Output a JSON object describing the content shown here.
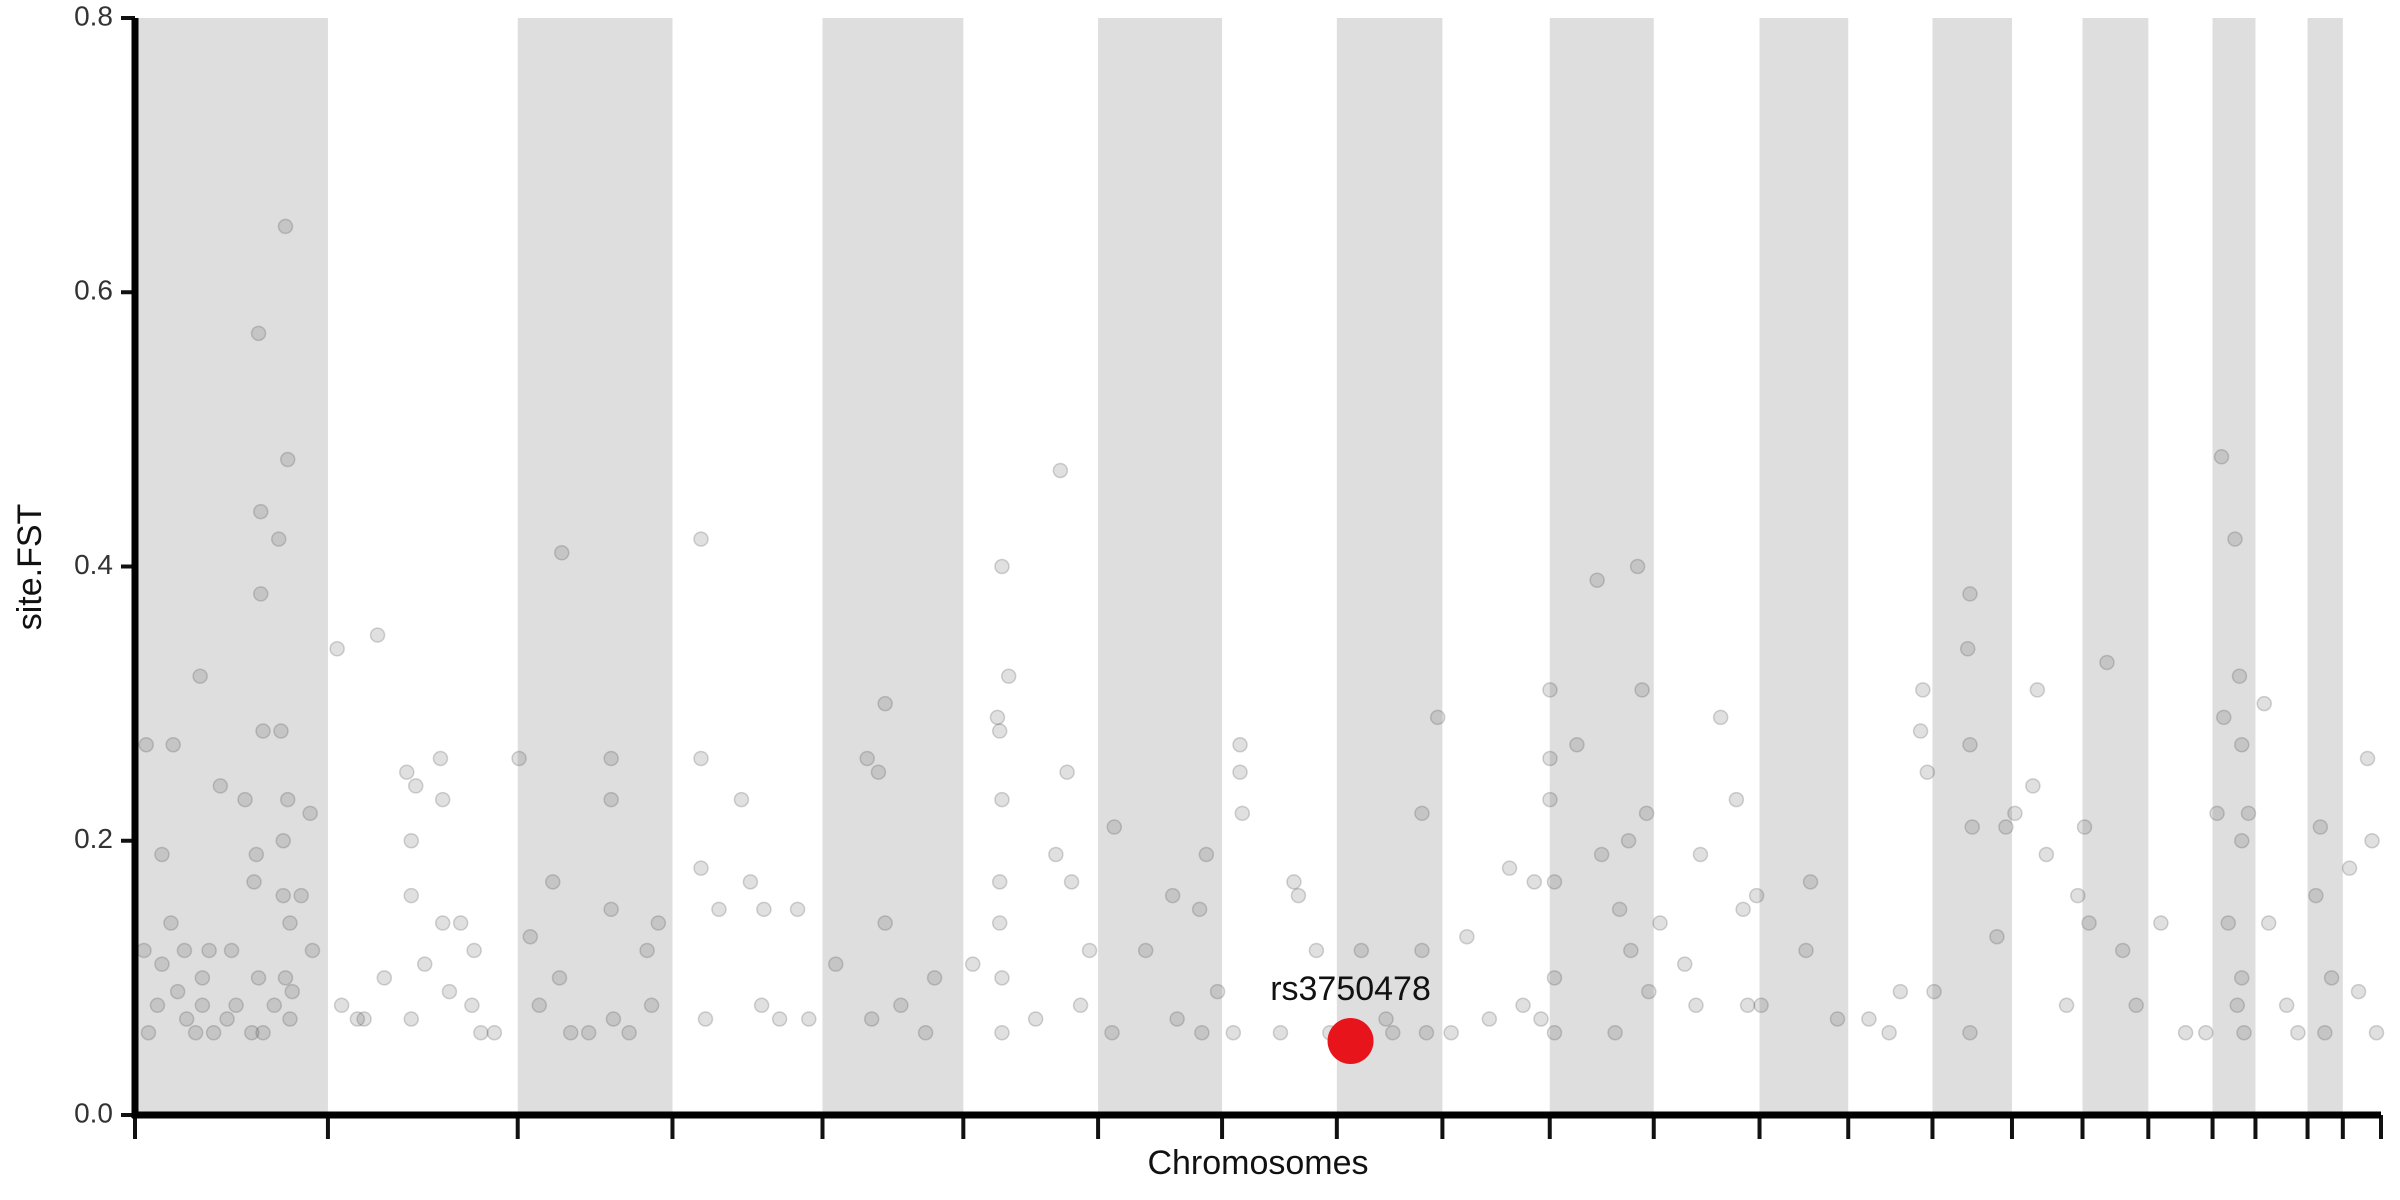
{
  "chart_data": {
    "type": "scatter",
    "xlabel": "Chromosomes",
    "ylabel": "site.FST",
    "xlim": [
      0,
      100
    ],
    "ylim": [
      0,
      0.8
    ],
    "xticks": [
      0,
      8.59,
      17.04,
      23.93,
      30.61,
      36.88,
      42.88,
      48.4,
      53.51,
      58.21,
      62.99,
      67.62,
      72.33,
      76.28,
      80.03,
      83.57,
      86.71,
      89.64,
      92.5,
      94.41,
      96.73,
      98.3,
      100
    ],
    "yticks": [
      {
        "value": 0,
        "label": "0.0"
      },
      0.2,
      0.4,
      0.6,
      0.8
    ],
    "band_color": "#dedede",
    "grid": false,
    "series": [
      {
        "color": "#555555",
        "x": [
          0.5,
          0.4,
          0.6,
          1.0,
          1.2,
          1.2,
          1.6,
          1.7,
          1.9,
          2.2,
          2.3,
          2.9,
          2.7,
          3.0,
          3.3,
          3.5,
          3.8,
          3.0,
          4.1,
          4.3,
          4.9,
          4.5,
          5.2,
          5.3,
          5.4,
          5.5,
          5.6,
          5.6,
          5.7,
          5.5,
          5.7,
          6.4,
          6.5,
          6.6,
          6.6,
          6.7,
          6.8,
          6.8,
          6.9,
          6.9,
          6.2,
          6.7,
          7.0,
          7.4,
          7.8,
          7.9,
          9.0,
          9.2,
          9.9,
          10.2,
          10.8,
          11.1,
          12.1,
          12.3,
          12.5,
          12.3,
          12.3,
          12.9,
          13.6,
          13.7,
          13.7,
          14.0,
          14.5,
          15.0,
          15.1,
          15.4,
          16.0,
          17.1,
          17.6,
          18.0,
          18.6,
          18.9,
          19.0,
          19.4,
          20.2,
          21.2,
          21.2,
          21.2,
          21.3,
          22.0,
          22.8,
          23.3,
          23.0,
          25.2,
          25.2,
          25.2,
          25.4,
          26.0,
          27.0,
          27.4,
          27.9,
          28.0,
          28.7,
          29.5,
          30.0,
          31.2,
          32.6,
          32.8,
          33.1,
          33.4,
          33.4,
          34.1,
          35.2,
          35.6,
          37.3,
          38.4,
          38.6,
          38.5,
          38.5,
          38.5,
          38.6,
          38.6,
          38.6,
          38.9,
          40.1,
          41.0,
          41.2,
          41.5,
          41.7,
          42.1,
          42.5,
          43.6,
          43.5,
          45.0,
          46.2,
          46.4,
          47.4,
          47.5,
          47.7,
          48.2,
          48.9,
          49.2,
          49.2,
          49.3,
          51.0,
          51.6,
          51.8,
          52.6,
          53.2,
          54.6,
          55.7,
          56.0,
          57.3,
          57.3,
          57.5,
          58.0,
          58.6,
          59.3,
          60.3,
          61.2,
          61.8,
          62.3,
          62.6,
          63.0,
          63.0,
          63.0,
          63.2,
          63.2,
          63.2,
          64.2,
          65.1,
          65.3,
          65.9,
          66.1,
          66.5,
          66.6,
          66.9,
          67.1,
          67.3,
          67.4,
          67.9,
          69.0,
          69.5,
          69.7,
          70.6,
          71.3,
          71.6,
          71.8,
          72.2,
          72.4,
          74.4,
          74.6,
          75.8,
          77.2,
          78.1,
          78.6,
          79.5,
          79.6,
          79.8,
          80.1,
          81.7,
          81.6,
          81.7,
          81.8,
          81.7,
          82.9,
          83.3,
          83.7,
          84.5,
          84.7,
          85.1,
          86.0,
          86.5,
          86.8,
          87.0,
          87.8,
          88.5,
          89.1,
          90.2,
          91.3,
          92.2,
          92.7,
          92.9,
          93.0,
          93.2,
          93.5,
          93.7,
          93.8,
          93.8,
          93.8,
          93.9,
          94.1,
          93.6,
          94.8,
          95.0,
          95.8,
          96.3,
          97.1,
          97.3,
          97.5,
          97.8,
          98.6,
          99.0,
          99.4,
          99.6,
          99.8
        ],
        "values": [
          0.27,
          0.12,
          0.06,
          0.08,
          0.19,
          0.11,
          0.14,
          0.27,
          0.09,
          0.12,
          0.07,
          0.32,
          0.06,
          0.1,
          0.12,
          0.06,
          0.24,
          0.08,
          0.07,
          0.12,
          0.23,
          0.08,
          0.06,
          0.17,
          0.19,
          0.57,
          0.44,
          0.38,
          0.28,
          0.1,
          0.06,
          0.42,
          0.28,
          0.2,
          0.16,
          0.648,
          0.478,
          0.23,
          0.14,
          0.07,
          0.08,
          0.1,
          0.09,
          0.16,
          0.22,
          0.12,
          0.34,
          0.08,
          0.07,
          0.07,
          0.35,
          0.1,
          0.25,
          0.2,
          0.24,
          0.07,
          0.16,
          0.11,
          0.26,
          0.14,
          0.23,
          0.09,
          0.14,
          0.08,
          0.12,
          0.06,
          0.06,
          0.26,
          0.13,
          0.08,
          0.17,
          0.1,
          0.41,
          0.06,
          0.06,
          0.26,
          0.23,
          0.15,
          0.07,
          0.06,
          0.12,
          0.14,
          0.08,
          0.42,
          0.26,
          0.18,
          0.07,
          0.15,
          0.23,
          0.17,
          0.08,
          0.15,
          0.07,
          0.15,
          0.07,
          0.11,
          0.26,
          0.07,
          0.25,
          0.3,
          0.14,
          0.08,
          0.06,
          0.1,
          0.11,
          0.29,
          0.4,
          0.17,
          0.28,
          0.14,
          0.1,
          0.06,
          0.23,
          0.32,
          0.07,
          0.19,
          0.47,
          0.25,
          0.17,
          0.08,
          0.12,
          0.21,
          0.06,
          0.12,
          0.16,
          0.07,
          0.15,
          0.06,
          0.19,
          0.09,
          0.06,
          0.27,
          0.25,
          0.22,
          0.06,
          0.17,
          0.16,
          0.12,
          0.06,
          0.12,
          0.07,
          0.06,
          0.12,
          0.22,
          0.06,
          0.29,
          0.06,
          0.13,
          0.07,
          0.18,
          0.08,
          0.17,
          0.07,
          0.31,
          0.23,
          0.26,
          0.17,
          0.1,
          0.06,
          0.27,
          0.39,
          0.19,
          0.06,
          0.15,
          0.2,
          0.12,
          0.4,
          0.31,
          0.22,
          0.09,
          0.14,
          0.11,
          0.08,
          0.19,
          0.29,
          0.23,
          0.15,
          0.08,
          0.16,
          0.08,
          0.12,
          0.17,
          0.07,
          0.07,
          0.06,
          0.09,
          0.28,
          0.31,
          0.25,
          0.09,
          0.38,
          0.34,
          0.27,
          0.21,
          0.06,
          0.13,
          0.21,
          0.22,
          0.24,
          0.31,
          0.19,
          0.08,
          0.16,
          0.21,
          0.14,
          0.33,
          0.12,
          0.08,
          0.14,
          0.06,
          0.06,
          0.22,
          0.48,
          0.29,
          0.14,
          0.42,
          0.32,
          0.27,
          0.2,
          0.1,
          0.06,
          0.22,
          0.08,
          0.3,
          0.14,
          0.08,
          0.06,
          0.16,
          0.21,
          0.06,
          0.1,
          0.18,
          0.09,
          0.26,
          0.2,
          0.06
        ]
      }
    ],
    "annotations": [
      {
        "text": "rs3750478",
        "x": 54.12,
        "y": 0.054,
        "color": "#e8141b"
      }
    ]
  }
}
